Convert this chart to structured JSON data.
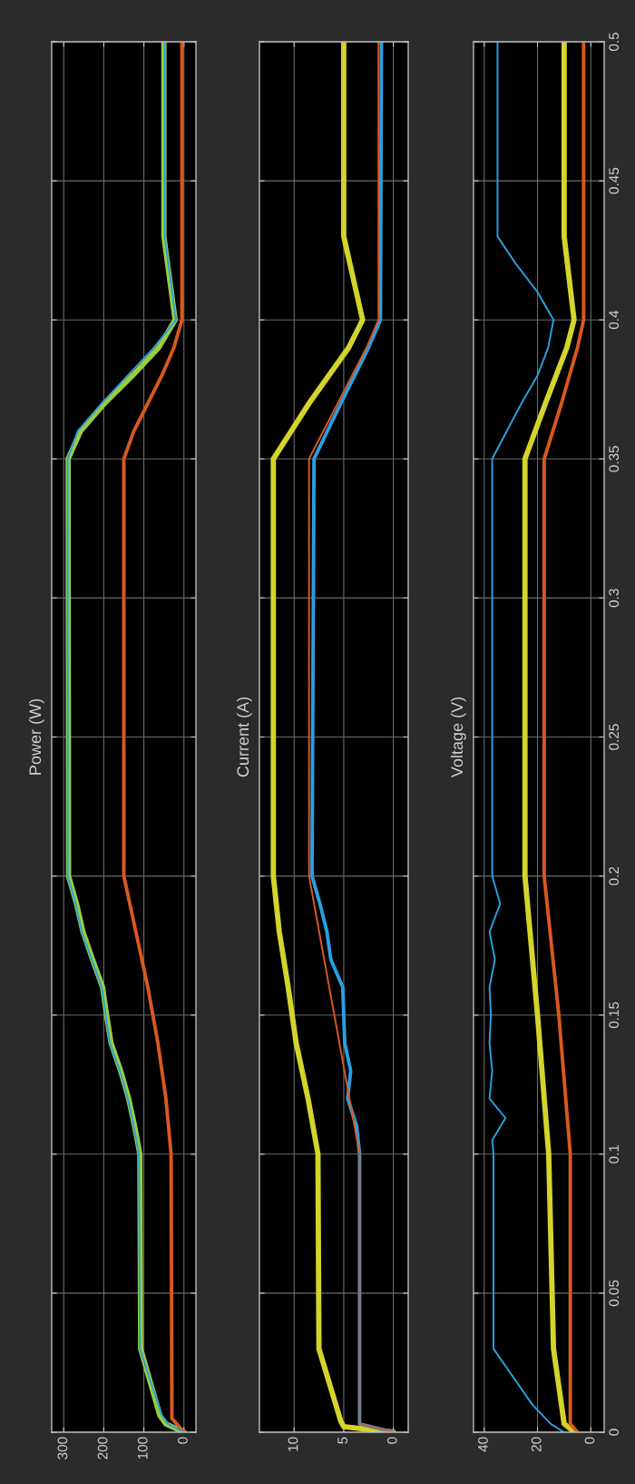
{
  "chart_data": [
    {
      "type": "line",
      "title": "Power (W)",
      "ylim": [
        0,
        0.5
      ],
      "yticks": [
        0,
        0.05,
        0.1,
        0.15,
        0.2,
        0.25,
        0.3,
        0.35,
        0.4,
        0.45,
        0.5
      ],
      "xlim": [
        330,
        -30
      ],
      "xticks": [
        0,
        100,
        200,
        300
      ],
      "grid": true,
      "tick_labels": "x",
      "series": [
        {
          "color": "#9ccc3c",
          "values": [
            0,
            0.003,
            0.006,
            0.03,
            0.1,
            0.11,
            0.12,
            0.13,
            0.14,
            0.15,
            0.16,
            0.17,
            0.18,
            0.19,
            0.2,
            0.35,
            0.36,
            0.37,
            0.38,
            0.39,
            0.4,
            0.43,
            0.5
          ],
          "x": [
            0,
            45,
            60,
            108,
            110,
            123,
            138,
            158,
            182,
            193,
            203,
            228,
            252,
            268,
            288,
            289,
            258,
            198,
            128,
            63,
            22,
            50,
            50
          ]
        },
        {
          "color": "#d9581f",
          "values": [
            0,
            0.005,
            0.1,
            0.12,
            0.14,
            0.16,
            0.18,
            0.2,
            0.35,
            0.36,
            0.37,
            0.38,
            0.39,
            0.4,
            0.5
          ],
          "x": [
            0,
            30,
            32,
            45,
            65,
            90,
            120,
            150,
            150,
            125,
            90,
            55,
            25,
            5,
            5
          ]
        },
        {
          "color": "#2a9fe0",
          "values": [
            0,
            0.003,
            0.006,
            0.03,
            0.1,
            0.11,
            0.12,
            0.13,
            0.14,
            0.15,
            0.16,
            0.17,
            0.18,
            0.19,
            0.2,
            0.35,
            0.36,
            0.37,
            0.38,
            0.39,
            0.4,
            0.43,
            0.5
          ],
          "x": [
            0,
            40,
            55,
            110,
            112,
            125,
            140,
            160,
            185,
            195,
            205,
            230,
            255,
            270,
            290,
            290,
            265,
            205,
            140,
            75,
            20,
            48,
            48
          ]
        }
      ]
    },
    {
      "type": "line",
      "title": "Current (A)",
      "ylim": [
        0,
        0.5
      ],
      "yticks": [
        0,
        0.05,
        0.1,
        0.15,
        0.2,
        0.25,
        0.3,
        0.35,
        0.4,
        0.45,
        0.5
      ],
      "xlim": [
        13.5,
        -1.5
      ],
      "xticks": [
        0,
        5,
        10
      ],
      "grid": true,
      "tick_labels": "x",
      "series": [
        {
          "color": "#d4d42a",
          "values": [
            0,
            0.002,
            0.004,
            0.03,
            0.1,
            0.12,
            0.14,
            0.16,
            0.18,
            0.2,
            0.35,
            0.37,
            0.39,
            0.4,
            0.43,
            0.5
          ],
          "x": [
            0,
            5,
            5.3,
            7.5,
            7.6,
            8.6,
            9.8,
            10.6,
            11.5,
            12.1,
            12.1,
            8.5,
            4.5,
            3.1,
            5,
            5
          ]
        },
        {
          "color": "#2a9fe0",
          "values": [
            0,
            0.003,
            0.1,
            0.11,
            0.12,
            0.13,
            0.14,
            0.15,
            0.16,
            0.17,
            0.18,
            0.19,
            0.2,
            0.35,
            0.37,
            0.39,
            0.4,
            0.5
          ],
          "x": [
            0,
            3.4,
            3.4,
            3.7,
            4.6,
            4.3,
            4.9,
            5.0,
            5.1,
            6.3,
            6.7,
            7.4,
            8.2,
            8.0,
            5.3,
            2.5,
            1.3,
            1.2
          ]
        },
        {
          "color": "#d9581f",
          "values": [
            0,
            0.003,
            0.1,
            0.2,
            0.35,
            0.37,
            0.39,
            0.4,
            0.5
          ],
          "x": [
            0,
            3.4,
            3.4,
            8.5,
            8.5,
            5.6,
            2.7,
            1.5,
            1.5
          ]
        }
      ]
    },
    {
      "type": "line",
      "title": "Voltage (V)",
      "ylim": [
        0,
        0.5
      ],
      "yticks": [
        0,
        0.05,
        0.1,
        0.15,
        0.2,
        0.25,
        0.3,
        0.35,
        0.4,
        0.45,
        0.5
      ],
      "xlim": [
        44,
        -5
      ],
      "xticks": [
        0,
        20,
        40
      ],
      "grid": true,
      "series": [
        {
          "color": "#d4d42a",
          "values": [
            0,
            0.003,
            0.03,
            0.1,
            0.15,
            0.2,
            0.35,
            0.37,
            0.39,
            0.4,
            0.43,
            0.5
          ],
          "x": [
            6,
            10,
            14,
            15.8,
            20,
            24.7,
            24.7,
            17,
            9,
            6.3,
            10,
            10
          ]
        },
        {
          "color": "#d9581f",
          "values": [
            0,
            0.003,
            0.1,
            0.15,
            0.2,
            0.35,
            0.37,
            0.39,
            0.4,
            0.5
          ],
          "x": [
            5,
            7.7,
            7.7,
            12,
            17.5,
            17.5,
            11,
            5,
            2.7,
            2.7
          ]
        },
        {
          "color": "#2a9fe0",
          "values": [
            0,
            0.003,
            0.01,
            0.03,
            0.1,
            0.105,
            0.113,
            0.12,
            0.13,
            0.14,
            0.15,
            0.16,
            0.17,
            0.18,
            0.19,
            0.2,
            0.35,
            0.37,
            0.38,
            0.39,
            0.4,
            0.41,
            0.42,
            0.43,
            0.5
          ],
          "x": [
            10,
            15,
            22,
            36.5,
            36.5,
            37,
            32,
            38,
            37,
            38,
            37.5,
            38,
            36,
            38,
            34,
            37,
            37,
            26,
            20,
            16,
            14,
            20,
            28,
            35,
            35
          ]
        }
      ]
    }
  ]
}
